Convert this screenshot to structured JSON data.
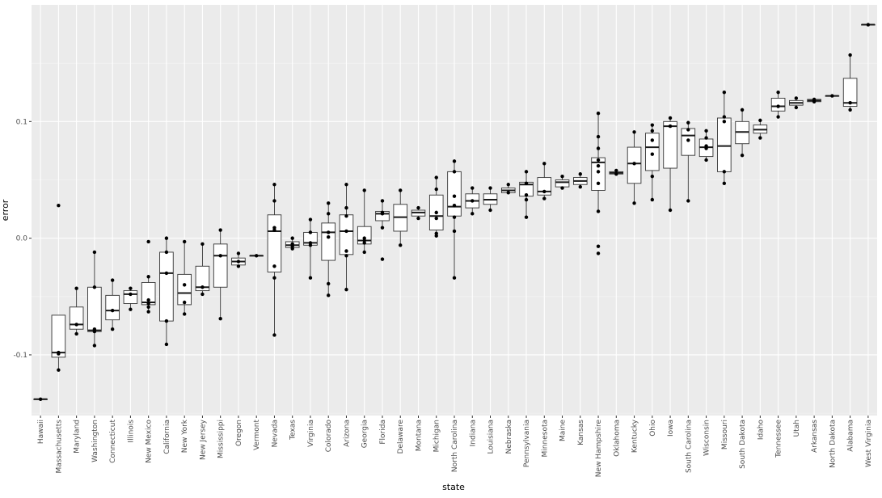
{
  "chart_data": {
    "type": "boxplot",
    "xlabel": "state",
    "ylabel": "error",
    "ylim": [
      -0.152,
      0.2
    ],
    "y_ticks": [
      {
        "value": -0.1,
        "label": "-0.1"
      },
      {
        "value": 0.0,
        "label": "0.0"
      },
      {
        "value": 0.1,
        "label": "0.1"
      }
    ],
    "categories": [
      "Hawaii",
      "Massachusetts",
      "Maryland",
      "Washington",
      "Connecticut",
      "Illinois",
      "New Mexico",
      "California",
      "New York",
      "New Jersey",
      "Mississippi",
      "Oregon",
      "Vermont",
      "Nevada",
      "Texas",
      "Virginia",
      "Colorado",
      "Arizona",
      "Georgia",
      "Florida",
      "Delaware",
      "Montana",
      "Michigan",
      "North Carolina",
      "Indiana",
      "Louisiana",
      "Nebraska",
      "Pennsylvania",
      "Minnesota",
      "Maine",
      "Kansas",
      "New Hampshire",
      "Oklahoma",
      "Kentucky",
      "Ohio",
      "Iowa",
      "South Carolina",
      "Wisconsin",
      "Missouri",
      "South Dakota",
      "Idaho",
      "Tennessee",
      "Utah",
      "Arkansas",
      "North Dakota",
      "Alabama",
      "West Virginia"
    ],
    "boxes": [
      {
        "state": "Hawaii",
        "q1": -0.138,
        "median": -0.138,
        "q3": -0.138,
        "low": -0.138,
        "high": -0.138,
        "points": [
          -0.138
        ]
      },
      {
        "state": "Massachusetts",
        "q1": -0.102,
        "median": -0.098,
        "q3": -0.066,
        "low": -0.113,
        "high": -0.066,
        "points": [
          0.028,
          -0.098,
          -0.099,
          -0.113
        ]
      },
      {
        "state": "Maryland",
        "q1": -0.078,
        "median": -0.074,
        "q3": -0.059,
        "low": -0.082,
        "high": -0.043,
        "points": [
          -0.043,
          -0.074,
          -0.082
        ]
      },
      {
        "state": "Washington",
        "q1": -0.08,
        "median": -0.079,
        "q3": -0.042,
        "low": -0.092,
        "high": -0.012,
        "points": [
          -0.012,
          -0.042,
          -0.078,
          -0.08,
          -0.092
        ]
      },
      {
        "state": "Connecticut",
        "q1": -0.07,
        "median": -0.062,
        "q3": -0.049,
        "low": -0.078,
        "high": -0.036,
        "points": [
          -0.036,
          -0.062,
          -0.078
        ]
      },
      {
        "state": "Illinois",
        "q1": -0.056,
        "median": -0.048,
        "q3": -0.045,
        "low": -0.061,
        "high": -0.043,
        "points": [
          -0.043,
          -0.048,
          -0.061
        ]
      },
      {
        "state": "New Mexico",
        "q1": -0.057,
        "median": -0.055,
        "q3": -0.038,
        "low": -0.063,
        "high": -0.033,
        "points": [
          -0.003,
          -0.033,
          -0.053,
          -0.056,
          -0.059,
          -0.063
        ]
      },
      {
        "state": "California",
        "q1": -0.071,
        "median": -0.03,
        "q3": -0.012,
        "low": -0.091,
        "high": 0.0,
        "points": [
          0.0,
          -0.012,
          -0.03,
          -0.071,
          -0.091
        ]
      },
      {
        "state": "New York",
        "q1": -0.057,
        "median": -0.047,
        "q3": -0.031,
        "low": -0.065,
        "high": -0.003,
        "points": [
          -0.003,
          -0.04,
          -0.055,
          -0.065
        ]
      },
      {
        "state": "New Jersey",
        "q1": -0.045,
        "median": -0.042,
        "q3": -0.024,
        "low": -0.048,
        "high": -0.005,
        "points": [
          -0.005,
          -0.042,
          -0.048
        ]
      },
      {
        "state": "Mississippi",
        "q1": -0.042,
        "median": -0.015,
        "q3": -0.005,
        "low": -0.069,
        "high": 0.007,
        "points": [
          0.007,
          -0.015,
          -0.069
        ]
      },
      {
        "state": "Oregon",
        "q1": -0.023,
        "median": -0.02,
        "q3": -0.017,
        "low": -0.024,
        "high": -0.013,
        "points": [
          -0.013,
          -0.02,
          -0.024
        ]
      },
      {
        "state": "Vermont",
        "q1": -0.015,
        "median": -0.015,
        "q3": -0.015,
        "low": -0.015,
        "high": -0.015,
        "points": [
          -0.015
        ]
      },
      {
        "state": "Nevada",
        "q1": -0.029,
        "median": 0.006,
        "q3": 0.02,
        "low": -0.083,
        "high": 0.046,
        "points": [
          0.046,
          0.032,
          0.009,
          0.007,
          -0.024,
          -0.034,
          -0.083
        ]
      },
      {
        "state": "Texas",
        "q1": -0.008,
        "median": -0.006,
        "q3": -0.003,
        "low": -0.009,
        "high": 0.0,
        "points": [
          0.0,
          -0.005,
          -0.007,
          -0.009
        ]
      },
      {
        "state": "Virginia",
        "q1": -0.006,
        "median": -0.004,
        "q3": 0.005,
        "low": -0.034,
        "high": 0.016,
        "points": [
          0.016,
          0.005,
          -0.004,
          -0.006,
          -0.034
        ]
      },
      {
        "state": "Colorado",
        "q1": -0.019,
        "median": 0.005,
        "q3": 0.013,
        "low": -0.049,
        "high": 0.03,
        "points": [
          0.03,
          0.021,
          0.005,
          0.001,
          -0.039,
          -0.049
        ]
      },
      {
        "state": "Arizona",
        "q1": -0.014,
        "median": 0.006,
        "q3": 0.02,
        "low": -0.044,
        "high": 0.046,
        "points": [
          0.046,
          0.026,
          0.019,
          0.006,
          -0.011,
          -0.015,
          -0.044
        ]
      },
      {
        "state": "Georgia",
        "q1": -0.005,
        "median": -0.002,
        "q3": 0.01,
        "low": -0.012,
        "high": 0.041,
        "points": [
          0.041,
          0.0,
          -0.002,
          -0.004,
          -0.012
        ]
      },
      {
        "state": "Florida",
        "q1": 0.015,
        "median": 0.021,
        "q3": 0.023,
        "low": 0.009,
        "high": 0.032,
        "points": [
          0.032,
          0.022,
          0.021,
          0.009,
          -0.018
        ]
      },
      {
        "state": "Delaware",
        "q1": 0.006,
        "median": 0.018,
        "q3": 0.029,
        "low": -0.006,
        "high": 0.041,
        "points": [
          0.041,
          -0.006
        ]
      },
      {
        "state": "Montana",
        "q1": 0.019,
        "median": 0.022,
        "q3": 0.024,
        "low": 0.017,
        "high": 0.026,
        "points": [
          0.026,
          0.017
        ]
      },
      {
        "state": "Michigan",
        "q1": 0.007,
        "median": 0.019,
        "q3": 0.037,
        "low": 0.002,
        "high": 0.052,
        "points": [
          0.052,
          0.042,
          0.022,
          0.017,
          0.004,
          0.002
        ]
      },
      {
        "state": "North Carolina",
        "q1": 0.019,
        "median": 0.027,
        "q3": 0.057,
        "low": -0.034,
        "high": 0.066,
        "points": [
          0.066,
          0.057,
          0.036,
          0.028,
          0.018,
          0.006,
          -0.034
        ]
      },
      {
        "state": "Indiana",
        "q1": 0.026,
        "median": 0.032,
        "q3": 0.038,
        "low": 0.021,
        "high": 0.043,
        "points": [
          0.043,
          0.032,
          0.021
        ]
      },
      {
        "state": "Louisiana",
        "q1": 0.029,
        "median": 0.033,
        "q3": 0.038,
        "low": 0.024,
        "high": 0.043,
        "points": [
          0.043,
          0.024
        ]
      },
      {
        "state": "Nebraska",
        "q1": 0.039,
        "median": 0.041,
        "q3": 0.043,
        "low": 0.039,
        "high": 0.046,
        "points": [
          0.046,
          0.039
        ]
      },
      {
        "state": "Pennsylvania",
        "q1": 0.036,
        "median": 0.046,
        "q3": 0.048,
        "low": 0.018,
        "high": 0.057,
        "points": [
          0.057,
          0.047,
          0.037,
          0.033,
          0.018
        ]
      },
      {
        "state": "Minnesota",
        "q1": 0.037,
        "median": 0.04,
        "q3": 0.052,
        "low": 0.034,
        "high": 0.064,
        "points": [
          0.064,
          0.04,
          0.034
        ]
      },
      {
        "state": "Maine",
        "q1": 0.044,
        "median": 0.048,
        "q3": 0.05,
        "low": 0.043,
        "high": 0.053,
        "points": [
          0.053,
          0.043
        ]
      },
      {
        "state": "Kansas",
        "q1": 0.046,
        "median": 0.049,
        "q3": 0.052,
        "low": 0.044,
        "high": 0.055,
        "points": [
          0.055,
          0.044
        ]
      },
      {
        "state": "New Hampshire",
        "q1": 0.041,
        "median": 0.065,
        "q3": 0.069,
        "low": 0.024,
        "high": 0.107,
        "points": [
          0.107,
          0.087,
          0.077,
          0.067,
          0.062,
          0.057,
          0.047,
          0.023,
          -0.007,
          -0.013
        ]
      },
      {
        "state": "Oklahoma",
        "q1": 0.055,
        "median": 0.056,
        "q3": 0.057,
        "low": 0.055,
        "high": 0.058,
        "points": [
          0.058,
          0.055
        ]
      },
      {
        "state": "Kentucky",
        "q1": 0.047,
        "median": 0.064,
        "q3": 0.078,
        "low": 0.03,
        "high": 0.091,
        "points": [
          0.091,
          0.064,
          0.03
        ]
      },
      {
        "state": "Ohio",
        "q1": 0.058,
        "median": 0.078,
        "q3": 0.09,
        "low": 0.033,
        "high": 0.097,
        "points": [
          0.097,
          0.092,
          0.084,
          0.072,
          0.053,
          0.033
        ]
      },
      {
        "state": "Iowa",
        "q1": 0.06,
        "median": 0.096,
        "q3": 0.1,
        "low": 0.024,
        "high": 0.103,
        "points": [
          0.103,
          0.096,
          0.024
        ]
      },
      {
        "state": "South Carolina",
        "q1": 0.071,
        "median": 0.088,
        "q3": 0.094,
        "low": 0.032,
        "high": 0.099,
        "points": [
          0.099,
          0.093,
          0.084,
          0.032
        ]
      },
      {
        "state": "Wisconsin",
        "q1": 0.07,
        "median": 0.078,
        "q3": 0.085,
        "low": 0.066,
        "high": 0.092,
        "points": [
          0.092,
          0.086,
          0.079,
          0.077,
          0.067
        ]
      },
      {
        "state": "Missouri",
        "q1": 0.057,
        "median": 0.079,
        "q3": 0.103,
        "low": 0.047,
        "high": 0.125,
        "points": [
          0.125,
          0.104,
          0.1,
          0.057,
          0.047
        ]
      },
      {
        "state": "South Dakota",
        "q1": 0.081,
        "median": 0.091,
        "q3": 0.1,
        "low": 0.071,
        "high": 0.11,
        "points": [
          0.11,
          0.071
        ]
      },
      {
        "state": "Idaho",
        "q1": 0.09,
        "median": 0.093,
        "q3": 0.097,
        "low": 0.086,
        "high": 0.101,
        "points": [
          0.101,
          0.086
        ]
      },
      {
        "state": "Tennessee",
        "q1": 0.109,
        "median": 0.113,
        "q3": 0.12,
        "low": 0.104,
        "high": 0.125,
        "points": [
          0.125,
          0.113,
          0.104
        ]
      },
      {
        "state": "Utah",
        "q1": 0.114,
        "median": 0.116,
        "q3": 0.118,
        "low": 0.112,
        "high": 0.12,
        "points": [
          0.12,
          0.112
        ]
      },
      {
        "state": "Arkansas",
        "q1": 0.117,
        "median": 0.118,
        "q3": 0.119,
        "low": 0.117,
        "high": 0.119,
        "points": [
          0.119,
          0.117
        ]
      },
      {
        "state": "North Dakota",
        "q1": 0.122,
        "median": 0.122,
        "q3": 0.122,
        "low": 0.122,
        "high": 0.122,
        "points": [
          0.122
        ]
      },
      {
        "state": "Alabama",
        "q1": 0.113,
        "median": 0.116,
        "q3": 0.137,
        "low": 0.11,
        "high": 0.157,
        "points": [
          0.157,
          0.116,
          0.11
        ]
      },
      {
        "state": "West Virginia",
        "q1": 0.183,
        "median": 0.183,
        "q3": 0.183,
        "low": 0.183,
        "high": 0.183,
        "points": [
          0.183
        ]
      }
    ]
  }
}
